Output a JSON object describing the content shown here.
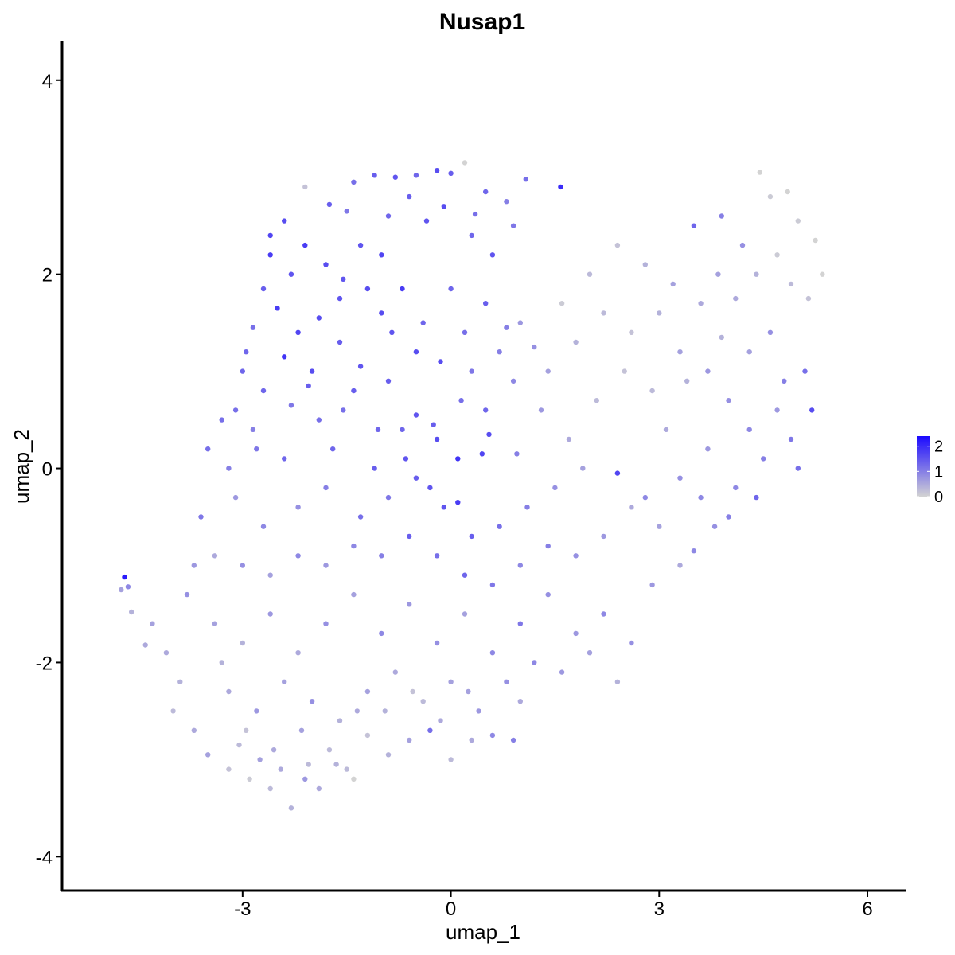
{
  "chart_data": {
    "type": "scatter",
    "title": "Nusap1",
    "xlabel": "umap_1",
    "ylabel": "umap_2",
    "xlim": [
      -5.6,
      6.55
    ],
    "ylim": [
      -4.35,
      4.4
    ],
    "x_ticks": [
      {
        "value": -3,
        "label": "-3"
      },
      {
        "value": 0,
        "label": "0"
      },
      {
        "value": 3,
        "label": "3"
      },
      {
        "value": 6,
        "label": "6"
      }
    ],
    "y_ticks": [
      {
        "value": -4,
        "label": "-4"
      },
      {
        "value": -2,
        "label": "-2"
      },
      {
        "value": 0,
        "label": "0"
      },
      {
        "value": 2,
        "label": "2"
      },
      {
        "value": 4,
        "label": "4"
      }
    ],
    "grid": false,
    "legend": {
      "placement": "right",
      "low_color": "#d3d3d3",
      "high_color": "#1b0aff",
      "min": 0,
      "max": 2.4,
      "ticks": [
        {
          "value": 0,
          "label": "0"
        },
        {
          "value": 1,
          "label": "1"
        },
        {
          "value": 2,
          "label": "2"
        }
      ]
    },
    "point_color_scale": [
      "#d3d3d3",
      "#1b0aff"
    ],
    "points": [
      [
        -4.7,
        -1.12,
        2.2
      ],
      [
        -4.75,
        -1.25,
        0.6
      ],
      [
        -4.65,
        -1.22,
        0.9
      ],
      [
        -4.6,
        -1.48,
        0.4
      ],
      [
        -4.4,
        -1.82,
        0.5
      ],
      [
        -1.4,
        2.95,
        1.2
      ],
      [
        -1.1,
        3.02,
        1.4
      ],
      [
        -0.8,
        3.0,
        1.5
      ],
      [
        -0.5,
        3.02,
        1.3
      ],
      [
        -0.2,
        3.07,
        1.6
      ],
      [
        0.0,
        3.04,
        1.4
      ],
      [
        0.2,
        3.15,
        0.0
      ],
      [
        0.5,
        2.85,
        1.3
      ],
      [
        1.08,
        2.98,
        1.2
      ],
      [
        1.58,
        2.9,
        2.0
      ],
      [
        -2.1,
        2.9,
        0.2
      ],
      [
        -1.75,
        2.72,
        1.4
      ],
      [
        -2.4,
        2.55,
        1.6
      ],
      [
        -1.5,
        2.65,
        1.1
      ],
      [
        -0.9,
        2.6,
        1.3
      ],
      [
        -0.35,
        2.55,
        1.5
      ],
      [
        0.35,
        2.62,
        1.2
      ],
      [
        0.8,
        2.75,
        1.0
      ],
      [
        -2.6,
        2.2,
        1.8
      ],
      [
        -2.3,
        2.0,
        1.5
      ],
      [
        -2.7,
        1.85,
        1.4
      ],
      [
        -2.5,
        1.65,
        1.8
      ],
      [
        -2.85,
        1.45,
        1.2
      ],
      [
        -2.2,
        1.4,
        1.7
      ],
      [
        -1.9,
        1.55,
        1.6
      ],
      [
        -1.6,
        1.75,
        1.5
      ],
      [
        -2.95,
        1.2,
        1.3
      ],
      [
        -2.4,
        1.15,
        1.9
      ],
      [
        -2.0,
        1.0,
        1.6
      ],
      [
        -1.6,
        1.3,
        1.4
      ],
      [
        -1.3,
        1.05,
        1.5
      ],
      [
        -2.7,
        0.8,
        1.3
      ],
      [
        -2.3,
        0.65,
        1.1
      ],
      [
        -1.9,
        0.5,
        1.2
      ],
      [
        -1.4,
        0.8,
        1.4
      ],
      [
        -1.0,
        1.6,
        1.6
      ],
      [
        -0.7,
        1.85,
        1.8
      ],
      [
        -0.4,
        1.5,
        1.3
      ],
      [
        -0.15,
        1.1,
        1.6
      ],
      [
        0.2,
        1.4,
        1.2
      ],
      [
        0.5,
        1.7,
        1.4
      ],
      [
        0.8,
        1.45,
        1.0
      ],
      [
        1.2,
        1.25,
        0.8
      ],
      [
        -0.9,
        0.9,
        1.4
      ],
      [
        -0.5,
        0.55,
        1.5
      ],
      [
        -0.2,
        0.3,
        1.6
      ],
      [
        0.1,
        0.1,
        1.9
      ],
      [
        0.45,
        0.15,
        1.7
      ],
      [
        -3.5,
        0.2,
        1.2
      ],
      [
        -3.2,
        0.0,
        1.0
      ],
      [
        -2.8,
        0.2,
        1.1
      ],
      [
        -2.4,
        0.1,
        1.3
      ],
      [
        -3.6,
        -0.5,
        1.1
      ],
      [
        -3.1,
        -0.3,
        0.7
      ],
      [
        -2.7,
        -0.6,
        0.9
      ],
      [
        -2.2,
        -0.4,
        0.8
      ],
      [
        -1.8,
        -0.2,
        1.0
      ],
      [
        -1.3,
        -0.5,
        1.2
      ],
      [
        -0.9,
        -0.3,
        1.1
      ],
      [
        -0.5,
        -0.1,
        1.4
      ],
      [
        -0.1,
        -0.4,
        1.5
      ],
      [
        0.3,
        -0.7,
        1.4
      ],
      [
        0.7,
        -0.6,
        1.2
      ],
      [
        1.1,
        -0.4,
        1.0
      ],
      [
        1.5,
        -0.2,
        0.8
      ],
      [
        1.9,
        0.0,
        0.6
      ],
      [
        2.4,
        -0.05,
        1.7
      ],
      [
        2.8,
        -0.3,
        0.9
      ],
      [
        3.3,
        -0.1,
        0.8
      ],
      [
        3.7,
        0.2,
        0.7
      ],
      [
        4.1,
        -0.2,
        0.9
      ],
      [
        4.5,
        0.1,
        1.0
      ],
      [
        4.9,
        0.3,
        1.1
      ],
      [
        5.2,
        0.6,
        1.6
      ],
      [
        5.1,
        1.0,
        1.2
      ],
      [
        4.8,
        0.9,
        1.0
      ],
      [
        4.6,
        1.4,
        0.8
      ],
      [
        4.3,
        1.2,
        0.6
      ],
      [
        3.9,
        1.35,
        0.4
      ],
      [
        3.6,
        1.7,
        0.5
      ],
      [
        3.2,
        1.9,
        0.6
      ],
      [
        2.8,
        2.1,
        0.4
      ],
      [
        2.4,
        2.3,
        0.2
      ],
      [
        2.0,
        2.0,
        0.3
      ],
      [
        1.6,
        1.7,
        0.1
      ],
      [
        3.5,
        2.5,
        1.3
      ],
      [
        3.9,
        2.6,
        1.0
      ],
      [
        4.2,
        2.3,
        0.8
      ],
      [
        4.45,
        3.05,
        0.0
      ],
      [
        4.6,
        2.8,
        0.1
      ],
      [
        4.85,
        2.85,
        0.0
      ],
      [
        5.0,
        2.55,
        0.1
      ],
      [
        5.25,
        2.35,
        0.0
      ],
      [
        5.35,
        2.0,
        0.0
      ],
      [
        5.15,
        1.75,
        0.2
      ],
      [
        4.9,
        1.9,
        0.3
      ],
      [
        4.7,
        2.2,
        0.1
      ],
      [
        4.4,
        2.0,
        0.4
      ],
      [
        4.1,
        1.75,
        0.5
      ],
      [
        3.85,
        2.0,
        0.6
      ],
      [
        -4.3,
        -1.6,
        0.6
      ],
      [
        -4.1,
        -1.9,
        0.5
      ],
      [
        -3.9,
        -2.2,
        0.4
      ],
      [
        -4.0,
        -2.5,
        0.3
      ],
      [
        -3.7,
        -2.7,
        0.5
      ],
      [
        -3.5,
        -2.95,
        0.6
      ],
      [
        -3.2,
        -3.1,
        0.2
      ],
      [
        -2.9,
        -3.2,
        0.1
      ],
      [
        -2.6,
        -3.3,
        0.3
      ],
      [
        -2.3,
        -3.5,
        0.4
      ],
      [
        -2.1,
        -3.2,
        0.7
      ],
      [
        -1.9,
        -3.3,
        0.5
      ],
      [
        -1.5,
        -3.1,
        0.3
      ],
      [
        -1.4,
        -3.2,
        0.0
      ],
      [
        -1.2,
        -2.75,
        0.2
      ],
      [
        -0.9,
        -2.95,
        0.4
      ],
      [
        -0.6,
        -2.8,
        0.6
      ],
      [
        -0.3,
        -2.7,
        1.2
      ],
      [
        0.0,
        -3.0,
        0.3
      ],
      [
        0.3,
        -2.8,
        0.5
      ],
      [
        0.6,
        -2.75,
        0.9
      ],
      [
        0.9,
        -2.8,
        1.0
      ],
      [
        1.0,
        -2.4,
        0.5
      ],
      [
        -3.8,
        -1.3,
        0.8
      ],
      [
        -3.4,
        -1.6,
        0.6
      ],
      [
        -3.0,
        -1.8,
        0.4
      ],
      [
        -2.6,
        -1.5,
        0.7
      ],
      [
        -2.2,
        -1.9,
        0.5
      ],
      [
        -1.8,
        -1.6,
        0.8
      ],
      [
        -1.4,
        -1.3,
        0.6
      ],
      [
        -1.0,
        -1.7,
        0.9
      ],
      [
        -0.6,
        -1.4,
        0.7
      ],
      [
        -0.2,
        -1.8,
        0.8
      ],
      [
        0.2,
        -1.5,
        0.6
      ],
      [
        0.6,
        -1.9,
        0.9
      ],
      [
        1.0,
        -1.6,
        1.1
      ],
      [
        1.4,
        -1.3,
        0.8
      ],
      [
        1.8,
        -1.7,
        0.7
      ],
      [
        2.2,
        -1.5,
        0.9
      ],
      [
        2.6,
        -1.8,
        0.8
      ],
      [
        2.9,
        -1.2,
        0.7
      ],
      [
        3.3,
        -1.0,
        0.5
      ],
      [
        3.5,
        -0.85,
        0.9
      ],
      [
        3.8,
        -0.6,
        0.8
      ],
      [
        -3.2,
        -2.3,
        0.5
      ],
      [
        -2.8,
        -2.5,
        0.7
      ],
      [
        -2.4,
        -2.2,
        0.6
      ],
      [
        -2.0,
        -2.4,
        0.8
      ],
      [
        -1.6,
        -2.6,
        0.4
      ],
      [
        -1.2,
        -2.3,
        0.6
      ],
      [
        -0.8,
        -2.1,
        0.5
      ],
      [
        -0.4,
        -2.4,
        0.3
      ],
      [
        0.0,
        -2.2,
        0.6
      ],
      [
        0.4,
        -2.5,
        0.7
      ],
      [
        0.8,
        -2.2,
        0.8
      ],
      [
        1.2,
        -2.0,
        0.9
      ],
      [
        1.6,
        -2.1,
        0.7
      ],
      [
        2.0,
        -1.9,
        0.6
      ],
      [
        2.4,
        -2.2,
        0.4
      ],
      [
        -3.0,
        1.0,
        1.3
      ],
      [
        -3.3,
        0.5,
        1.2
      ],
      [
        -1.7,
        0.2,
        1.3
      ],
      [
        -1.1,
        0.0,
        1.4
      ],
      [
        -0.7,
        0.4,
        1.3
      ],
      [
        -0.3,
        -0.2,
        1.5
      ],
      [
        0.1,
        -0.35,
        1.8
      ],
      [
        0.5,
        0.6,
        1.3
      ],
      [
        0.9,
        0.9,
        0.9
      ],
      [
        1.3,
        0.6,
        0.7
      ],
      [
        1.7,
        0.3,
        0.5
      ],
      [
        2.1,
        0.7,
        0.3
      ],
      [
        2.5,
        1.0,
        0.2
      ],
      [
        2.9,
        0.8,
        0.3
      ],
      [
        3.1,
        0.4,
        0.5
      ],
      [
        3.4,
        0.9,
        0.4
      ],
      [
        -2.6,
        2.4,
        1.7
      ],
      [
        -2.1,
        2.3,
        1.8
      ],
      [
        -1.8,
        2.1,
        1.6
      ],
      [
        -1.3,
        2.3,
        1.5
      ],
      [
        -1.0,
        2.2,
        1.7
      ],
      [
        -0.6,
        2.8,
        1.4
      ],
      [
        -0.1,
        2.7,
        1.6
      ],
      [
        0.3,
        2.4,
        1.3
      ],
      [
        0.6,
        2.2,
        1.5
      ],
      [
        0.9,
        2.5,
        1.1
      ],
      [
        -1.55,
        1.95,
        1.5
      ],
      [
        -1.2,
        1.85,
        1.6
      ],
      [
        -0.85,
        1.4,
        1.5
      ],
      [
        -0.5,
        1.2,
        1.6
      ],
      [
        0.0,
        1.85,
        1.3
      ],
      [
        0.3,
        1.0,
        1.1
      ],
      [
        0.7,
        1.2,
        1.0
      ],
      [
        1.0,
        1.5,
        0.7
      ],
      [
        1.4,
        1.0,
        0.6
      ],
      [
        1.8,
        1.3,
        0.4
      ],
      [
        2.2,
        1.6,
        0.3
      ],
      [
        2.6,
        1.4,
        0.2
      ],
      [
        3.0,
        1.6,
        0.4
      ],
      [
        3.3,
        1.2,
        0.6
      ],
      [
        3.7,
        1.0,
        0.7
      ],
      [
        4.0,
        0.7,
        0.8
      ],
      [
        4.3,
        0.4,
        0.9
      ],
      [
        4.7,
        0.6,
        0.7
      ],
      [
        5.0,
        0.0,
        1.2
      ],
      [
        4.4,
        -0.3,
        1.3
      ],
      [
        4.0,
        -0.5,
        1.0
      ],
      [
        3.6,
        -0.3,
        0.9
      ],
      [
        3.0,
        -0.6,
        0.6
      ],
      [
        2.6,
        -0.4,
        0.5
      ],
      [
        2.2,
        -0.7,
        0.7
      ],
      [
        1.8,
        -0.9,
        0.8
      ],
      [
        1.4,
        -0.8,
        1.0
      ],
      [
        1.0,
        -1.0,
        0.9
      ],
      [
        0.6,
        -1.2,
        1.1
      ],
      [
        0.2,
        -1.1,
        1.3
      ],
      [
        -0.2,
        -0.9,
        1.2
      ],
      [
        -0.6,
        -0.7,
        1.4
      ],
      [
        -1.0,
        -0.9,
        1.0
      ],
      [
        -1.4,
        -0.8,
        0.9
      ],
      [
        -1.8,
        -1.0,
        0.7
      ],
      [
        -2.2,
        -0.9,
        0.9
      ],
      [
        -2.6,
        -1.1,
        0.6
      ],
      [
        -3.0,
        -1.0,
        0.8
      ],
      [
        -3.4,
        -0.9,
        0.5
      ],
      [
        -3.7,
        -1.0,
        0.7
      ],
      [
        -3.1,
        0.6,
        1.2
      ],
      [
        -2.85,
        0.4,
        1.0
      ],
      [
        -2.05,
        0.85,
        1.4
      ],
      [
        -1.55,
        0.6,
        1.2
      ],
      [
        -1.05,
        0.4,
        1.3
      ],
      [
        -0.65,
        0.1,
        1.5
      ],
      [
        -0.25,
        0.45,
        1.4
      ],
      [
        0.15,
        0.7,
        1.2
      ],
      [
        0.55,
        0.35,
        1.6
      ],
      [
        0.95,
        0.15,
        1.0
      ],
      [
        -3.3,
        -2.0,
        0.4
      ],
      [
        -2.95,
        -2.7,
        0.2
      ],
      [
        -2.55,
        -2.9,
        0.5
      ],
      [
        -2.15,
        -2.7,
        0.6
      ],
      [
        -1.75,
        -2.9,
        0.3
      ],
      [
        -1.35,
        -2.5,
        0.5
      ],
      [
        -0.95,
        -2.5,
        0.4
      ],
      [
        -0.55,
        -2.3,
        0.2
      ],
      [
        -0.15,
        -2.6,
        0.5
      ],
      [
        0.25,
        -2.3,
        0.6
      ],
      [
        -2.45,
        -3.1,
        0.5
      ],
      [
        -2.05,
        -3.05,
        0.3
      ],
      [
        -1.65,
        -3.05,
        0.4
      ],
      [
        -2.75,
        -3.0,
        0.6
      ],
      [
        -3.05,
        -2.85,
        0.3
      ]
    ]
  }
}
